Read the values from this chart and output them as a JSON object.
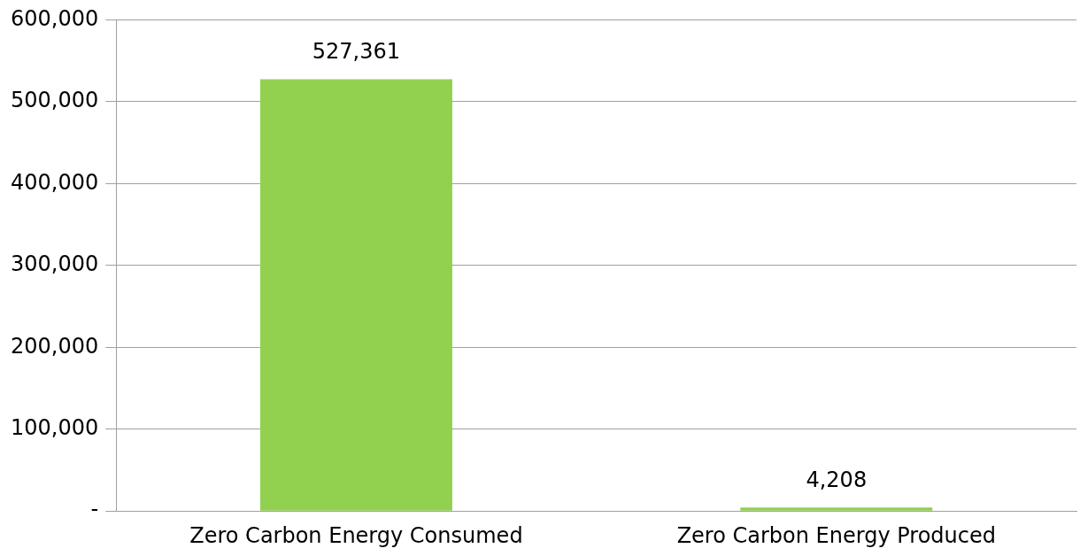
{
  "chart_data": {
    "type": "bar",
    "categories": [
      "Zero Carbon Energy Consumed",
      "Zero Carbon Energy Produced"
    ],
    "values": [
      527361,
      4208
    ],
    "value_labels": [
      "527,361",
      "4,208"
    ],
    "color": "#92d050",
    "ylim": [
      0,
      600000
    ],
    "yticks": [
      {
        "value": 0,
        "label": "-"
      },
      {
        "value": 100000,
        "label": "100,000"
      },
      {
        "value": 200000,
        "label": "200,000"
      },
      {
        "value": 300000,
        "label": "300,000"
      },
      {
        "value": 400000,
        "label": "400,000"
      },
      {
        "value": 500000,
        "label": "500,000"
      },
      {
        "value": 600000,
        "label": "600,000"
      }
    ],
    "grid": "y",
    "legend": false
  }
}
